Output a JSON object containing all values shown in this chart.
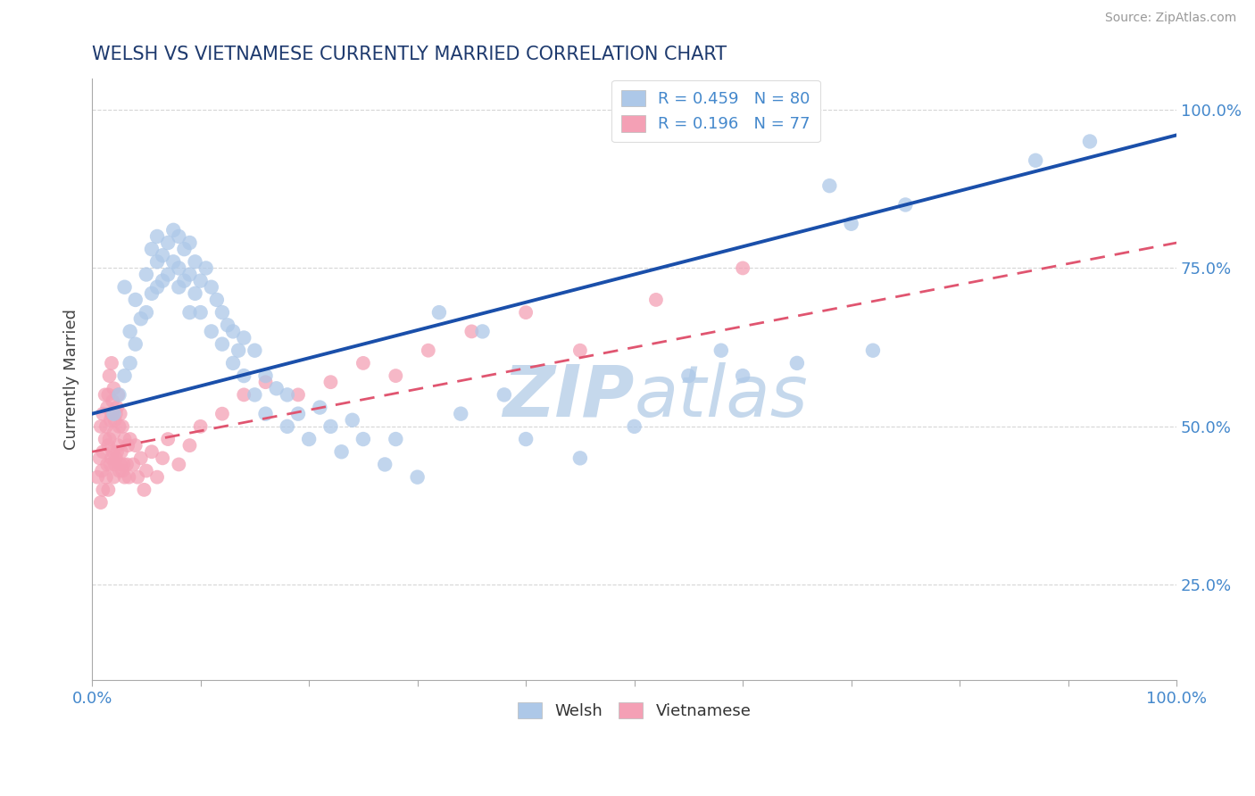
{
  "title": "WELSH VS VIETNAMESE CURRENTLY MARRIED CORRELATION CHART",
  "source": "Source: ZipAtlas.com",
  "ylabel": "Currently Married",
  "xlim": [
    0,
    1.0
  ],
  "ylim": [
    0.1,
    1.05
  ],
  "welsh_R": 0.459,
  "welsh_N": 80,
  "vietnamese_R": 0.196,
  "vietnamese_N": 77,
  "welsh_color": "#adc8e8",
  "welsh_line_color": "#1a4faa",
  "vietnamese_color": "#f4a0b5",
  "vietnamese_line_color": "#e05570",
  "watermark_zip_color": "#c5d8ec",
  "watermark_atlas_color": "#c5d8ec",
  "title_color": "#1e3a6e",
  "axis_color": "#4488cc",
  "tick_color": "#4488cc",
  "background_color": "#ffffff",
  "grid_color": "#cccccc",
  "welsh_x": [
    0.02,
    0.025,
    0.03,
    0.03,
    0.035,
    0.035,
    0.04,
    0.04,
    0.045,
    0.05,
    0.05,
    0.055,
    0.055,
    0.06,
    0.06,
    0.06,
    0.065,
    0.065,
    0.07,
    0.07,
    0.075,
    0.075,
    0.08,
    0.08,
    0.08,
    0.085,
    0.085,
    0.09,
    0.09,
    0.09,
    0.095,
    0.095,
    0.1,
    0.1,
    0.105,
    0.11,
    0.11,
    0.115,
    0.12,
    0.12,
    0.125,
    0.13,
    0.13,
    0.135,
    0.14,
    0.14,
    0.15,
    0.15,
    0.16,
    0.16,
    0.17,
    0.18,
    0.18,
    0.19,
    0.2,
    0.21,
    0.22,
    0.23,
    0.24,
    0.25,
    0.27,
    0.28,
    0.3,
    0.32,
    0.34,
    0.36,
    0.38,
    0.4,
    0.45,
    0.5,
    0.55,
    0.58,
    0.6,
    0.65,
    0.68,
    0.7,
    0.72,
    0.75,
    0.87,
    0.92
  ],
  "welsh_y": [
    0.52,
    0.55,
    0.58,
    0.72,
    0.6,
    0.65,
    0.63,
    0.7,
    0.67,
    0.68,
    0.74,
    0.71,
    0.78,
    0.72,
    0.76,
    0.8,
    0.73,
    0.77,
    0.74,
    0.79,
    0.76,
    0.81,
    0.72,
    0.75,
    0.8,
    0.73,
    0.78,
    0.68,
    0.74,
    0.79,
    0.71,
    0.76,
    0.68,
    0.73,
    0.75,
    0.65,
    0.72,
    0.7,
    0.63,
    0.68,
    0.66,
    0.6,
    0.65,
    0.62,
    0.58,
    0.64,
    0.55,
    0.62,
    0.52,
    0.58,
    0.56,
    0.5,
    0.55,
    0.52,
    0.48,
    0.53,
    0.5,
    0.46,
    0.51,
    0.48,
    0.44,
    0.48,
    0.42,
    0.68,
    0.52,
    0.65,
    0.55,
    0.48,
    0.45,
    0.5,
    0.58,
    0.62,
    0.58,
    0.6,
    0.88,
    0.82,
    0.62,
    0.85,
    0.92,
    0.95
  ],
  "vietnamese_x": [
    0.005,
    0.007,
    0.008,
    0.008,
    0.009,
    0.01,
    0.01,
    0.01,
    0.012,
    0.012,
    0.013,
    0.013,
    0.014,
    0.014,
    0.015,
    0.015,
    0.015,
    0.016,
    0.016,
    0.017,
    0.017,
    0.018,
    0.018,
    0.018,
    0.019,
    0.019,
    0.02,
    0.02,
    0.02,
    0.021,
    0.021,
    0.022,
    0.022,
    0.023,
    0.023,
    0.024,
    0.024,
    0.025,
    0.025,
    0.026,
    0.026,
    0.027,
    0.028,
    0.028,
    0.029,
    0.03,
    0.03,
    0.032,
    0.033,
    0.034,
    0.035,
    0.038,
    0.04,
    0.042,
    0.045,
    0.048,
    0.05,
    0.055,
    0.06,
    0.065,
    0.07,
    0.08,
    0.09,
    0.1,
    0.12,
    0.14,
    0.16,
    0.19,
    0.22,
    0.25,
    0.28,
    0.31,
    0.35,
    0.4,
    0.45,
    0.52,
    0.6
  ],
  "vietnamese_y": [
    0.42,
    0.45,
    0.38,
    0.5,
    0.43,
    0.46,
    0.4,
    0.52,
    0.48,
    0.55,
    0.42,
    0.5,
    0.44,
    0.53,
    0.47,
    0.55,
    0.4,
    0.48,
    0.58,
    0.44,
    0.51,
    0.45,
    0.52,
    0.6,
    0.46,
    0.54,
    0.42,
    0.49,
    0.56,
    0.44,
    0.51,
    0.45,
    0.52,
    0.46,
    0.53,
    0.47,
    0.55,
    0.43,
    0.5,
    0.44,
    0.52,
    0.46,
    0.43,
    0.5,
    0.44,
    0.42,
    0.48,
    0.44,
    0.47,
    0.42,
    0.48,
    0.44,
    0.47,
    0.42,
    0.45,
    0.4,
    0.43,
    0.46,
    0.42,
    0.45,
    0.48,
    0.44,
    0.47,
    0.5,
    0.52,
    0.55,
    0.57,
    0.55,
    0.57,
    0.6,
    0.58,
    0.62,
    0.65,
    0.68,
    0.62,
    0.7,
    0.75
  ],
  "welsh_line_x0": 0.0,
  "welsh_line_x1": 1.0,
  "welsh_line_y0": 0.52,
  "welsh_line_y1": 0.96,
  "viet_line_x0": 0.0,
  "viet_line_x1": 1.0,
  "viet_line_y0": 0.46,
  "viet_line_y1": 0.79
}
